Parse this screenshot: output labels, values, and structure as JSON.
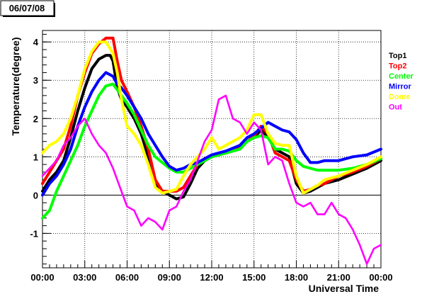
{
  "chart_data": {
    "type": "line",
    "date_label": "06/07/08",
    "xlabel": "Universal Time",
    "ylabel": "Temperature(degree)",
    "xlim": [
      0,
      24
    ],
    "ylim": [
      -1.9,
      4.3
    ],
    "x_ticks": [
      "00:00",
      "03:00",
      "06:00",
      "09:00",
      "12:00",
      "15:00",
      "18:00",
      "21:00",
      "00:00"
    ],
    "y_ticks": [
      "-1",
      "0",
      "1",
      "2",
      "3",
      "4"
    ],
    "grid": true,
    "zero_line": true,
    "legend_position": "right",
    "series": [
      {
        "name": "Top1",
        "color": "#000000",
        "points": [
          [
            0,
            0.1
          ],
          [
            0.5,
            0.4
          ],
          [
            1,
            0.6
          ],
          [
            1.5,
            0.9
          ],
          [
            2,
            1.5
          ],
          [
            2.5,
            2.2
          ],
          [
            3,
            2.8
          ],
          [
            3.5,
            3.3
          ],
          [
            4,
            3.55
          ],
          [
            4.5,
            3.65
          ],
          [
            4.8,
            3.65
          ],
          [
            5,
            3.5
          ],
          [
            5.3,
            2.8
          ],
          [
            5.6,
            2.5
          ],
          [
            6,
            2.3
          ],
          [
            6.5,
            2.0
          ],
          [
            7,
            1.6
          ],
          [
            7.5,
            1.0
          ],
          [
            8,
            0.3
          ],
          [
            8.5,
            0.1
          ],
          [
            9,
            0
          ],
          [
            9.5,
            -0.1
          ],
          [
            10,
            -0.05
          ],
          [
            10.5,
            0.3
          ],
          [
            11,
            0.7
          ],
          [
            11.5,
            0.9
          ],
          [
            12,
            1.0
          ],
          [
            13,
            1.1
          ],
          [
            14,
            1.2
          ],
          [
            14.5,
            1.4
          ],
          [
            15,
            1.5
          ],
          [
            15.5,
            1.7
          ],
          [
            16,
            1.5
          ],
          [
            16.5,
            1.2
          ],
          [
            17,
            1.1
          ],
          [
            17.5,
            1.0
          ],
          [
            18,
            0.3
          ],
          [
            18.5,
            0.05
          ],
          [
            19,
            0.1
          ],
          [
            19.5,
            0.2
          ],
          [
            20,
            0.3
          ],
          [
            21,
            0.4
          ],
          [
            22,
            0.55
          ],
          [
            23,
            0.7
          ],
          [
            24,
            0.9
          ]
        ]
      },
      {
        "name": "Top2",
        "color": "#ff0000",
        "points": [
          [
            0,
            0.3
          ],
          [
            0.5,
            0.6
          ],
          [
            1,
            0.9
          ],
          [
            1.5,
            1.2
          ],
          [
            2,
            1.8
          ],
          [
            2.5,
            2.6
          ],
          [
            3,
            3.2
          ],
          [
            3.5,
            3.7
          ],
          [
            4,
            3.95
          ],
          [
            4.5,
            4.1
          ],
          [
            5,
            4.1
          ],
          [
            5.3,
            3.5
          ],
          [
            5.6,
            3.0
          ],
          [
            6,
            2.7
          ],
          [
            6.5,
            2.3
          ],
          [
            7,
            1.8
          ],
          [
            7.5,
            1.2
          ],
          [
            8,
            0.4
          ],
          [
            8.5,
            0.1
          ],
          [
            9,
            0.1
          ],
          [
            9.5,
            0.1
          ],
          [
            10,
            0.2
          ],
          [
            10.5,
            0.5
          ],
          [
            11,
            0.8
          ],
          [
            11.5,
            0.95
          ],
          [
            12,
            1.05
          ],
          [
            13,
            1.1
          ],
          [
            14,
            1.25
          ],
          [
            14.5,
            1.4
          ],
          [
            15,
            1.55
          ],
          [
            15.5,
            1.8
          ],
          [
            16,
            1.6
          ],
          [
            16.5,
            1.1
          ],
          [
            17,
            1.0
          ],
          [
            17.5,
            0.9
          ],
          [
            18,
            0.4
          ],
          [
            18.5,
            0.1
          ],
          [
            19,
            0.15
          ],
          [
            19.5,
            0.25
          ],
          [
            20,
            0.3
          ],
          [
            21,
            0.5
          ],
          [
            22,
            0.6
          ],
          [
            23,
            0.75
          ],
          [
            24,
            0.95
          ]
        ]
      },
      {
        "name": "Center",
        "color": "#00ff00",
        "points": [
          [
            0,
            -0.6
          ],
          [
            0.5,
            -0.4
          ],
          [
            1,
            0.1
          ],
          [
            1.5,
            0.5
          ],
          [
            2,
            0.9
          ],
          [
            2.5,
            1.3
          ],
          [
            3,
            1.8
          ],
          [
            3.5,
            2.2
          ],
          [
            4,
            2.6
          ],
          [
            4.5,
            2.85
          ],
          [
            5,
            2.9
          ],
          [
            5.3,
            2.75
          ],
          [
            5.6,
            2.6
          ],
          [
            6,
            2.4
          ],
          [
            6.5,
            2.1
          ],
          [
            7,
            1.7
          ],
          [
            7.5,
            1.3
          ],
          [
            8,
            1.0
          ],
          [
            8.5,
            0.85
          ],
          [
            9,
            0.7
          ],
          [
            9.5,
            0.6
          ],
          [
            10,
            0.6
          ],
          [
            10.5,
            0.7
          ],
          [
            11,
            0.8
          ],
          [
            11.5,
            0.9
          ],
          [
            12,
            1.0
          ],
          [
            13,
            1.1
          ],
          [
            14,
            1.2
          ],
          [
            14.5,
            1.4
          ],
          [
            15,
            1.5
          ],
          [
            15.5,
            1.55
          ],
          [
            16,
            1.5
          ],
          [
            16.5,
            1.2
          ],
          [
            17,
            1.2
          ],
          [
            17.5,
            1.15
          ],
          [
            18,
            0.9
          ],
          [
            18.5,
            0.75
          ],
          [
            19,
            0.7
          ],
          [
            19.5,
            0.65
          ],
          [
            20,
            0.65
          ],
          [
            21,
            0.65
          ],
          [
            22,
            0.7
          ],
          [
            23,
            0.8
          ],
          [
            24,
            0.95
          ]
        ]
      },
      {
        "name": "Mirror",
        "color": "#0000ff",
        "points": [
          [
            0,
            0
          ],
          [
            0.5,
            0.3
          ],
          [
            1,
            0.5
          ],
          [
            1.5,
            0.8
          ],
          [
            2,
            1.2
          ],
          [
            2.5,
            1.8
          ],
          [
            3,
            2.3
          ],
          [
            3.5,
            2.7
          ],
          [
            4,
            3.0
          ],
          [
            4.5,
            3.2
          ],
          [
            5,
            3.1
          ],
          [
            5.3,
            2.9
          ],
          [
            5.6,
            2.8
          ],
          [
            6,
            2.6
          ],
          [
            6.5,
            2.3
          ],
          [
            7,
            2.0
          ],
          [
            7.5,
            1.6
          ],
          [
            8,
            1.3
          ],
          [
            8.5,
            1.0
          ],
          [
            9,
            0.75
          ],
          [
            9.5,
            0.65
          ],
          [
            10,
            0.7
          ],
          [
            10.5,
            0.8
          ],
          [
            11,
            0.85
          ],
          [
            11.5,
            0.95
          ],
          [
            12,
            1.05
          ],
          [
            13,
            1.15
          ],
          [
            14,
            1.3
          ],
          [
            14.5,
            1.5
          ],
          [
            15,
            1.6
          ],
          [
            15.5,
            1.75
          ],
          [
            16,
            1.9
          ],
          [
            16.5,
            1.8
          ],
          [
            17,
            1.7
          ],
          [
            17.5,
            1.65
          ],
          [
            18,
            1.45
          ],
          [
            18.5,
            1.1
          ],
          [
            19,
            0.85
          ],
          [
            19.5,
            0.85
          ],
          [
            20,
            0.9
          ],
          [
            21,
            0.9
          ],
          [
            22,
            1.0
          ],
          [
            23,
            1.05
          ],
          [
            24,
            1.2
          ]
        ]
      },
      {
        "name": "Dome",
        "color": "#ffff00",
        "points": [
          [
            0,
            1.1
          ],
          [
            0.5,
            1.3
          ],
          [
            1,
            1.4
          ],
          [
            1.5,
            1.6
          ],
          [
            2,
            2.0
          ],
          [
            2.5,
            2.6
          ],
          [
            3,
            3.3
          ],
          [
            3.5,
            3.75
          ],
          [
            4,
            4.0
          ],
          [
            4.5,
            4.0
          ],
          [
            5,
            3.7
          ],
          [
            5.3,
            3.2
          ],
          [
            5.6,
            2.5
          ],
          [
            6,
            1.8
          ],
          [
            6.5,
            1.6
          ],
          [
            7,
            1.3
          ],
          [
            7.5,
            0.8
          ],
          [
            8,
            0.2
          ],
          [
            8.5,
            0.05
          ],
          [
            9,
            0.1
          ],
          [
            9.5,
            0.15
          ],
          [
            10,
            0.5
          ],
          [
            10.5,
            0.8
          ],
          [
            11,
            1.0
          ],
          [
            11.5,
            1.2
          ],
          [
            12,
            1.5
          ],
          [
            12.5,
            1.2
          ],
          [
            13,
            1.3
          ],
          [
            14,
            1.5
          ],
          [
            14.5,
            1.7
          ],
          [
            15,
            2.1
          ],
          [
            15.5,
            2.1
          ],
          [
            16,
            1.6
          ],
          [
            16.5,
            1.35
          ],
          [
            17,
            1.3
          ],
          [
            17.5,
            1.3
          ],
          [
            18,
            0.5
          ],
          [
            18.5,
            0.05
          ],
          [
            19,
            0.15
          ],
          [
            19.5,
            0.25
          ],
          [
            20,
            0.4
          ],
          [
            21,
            0.5
          ],
          [
            22,
            0.65
          ],
          [
            23,
            0.8
          ],
          [
            24,
            1.0
          ]
        ]
      },
      {
        "name": "Out",
        "color": "#ff00ff",
        "points": [
          [
            0,
            0.5
          ],
          [
            0.5,
            0.7
          ],
          [
            1,
            0.9
          ],
          [
            1.5,
            1.3
          ],
          [
            2,
            1.5
          ],
          [
            2.5,
            1.8
          ],
          [
            3,
            2.0
          ],
          [
            3.5,
            1.6
          ],
          [
            4,
            1.3
          ],
          [
            4.5,
            1.1
          ],
          [
            5,
            0.7
          ],
          [
            5.5,
            0.2
          ],
          [
            6,
            -0.3
          ],
          [
            6.5,
            -0.4
          ],
          [
            7,
            -0.8
          ],
          [
            7.5,
            -0.6
          ],
          [
            8,
            -0.7
          ],
          [
            8.5,
            -0.9
          ],
          [
            9,
            -0.4
          ],
          [
            9.5,
            -0.3
          ],
          [
            10,
            0.1
          ],
          [
            10.5,
            0.4
          ],
          [
            11,
            0.9
          ],
          [
            11.5,
            1.4
          ],
          [
            12,
            1.7
          ],
          [
            12.5,
            2.5
          ],
          [
            13,
            2.6
          ],
          [
            13.5,
            2.0
          ],
          [
            14,
            1.9
          ],
          [
            14.5,
            1.6
          ],
          [
            15,
            1.9
          ],
          [
            15.5,
            1.7
          ],
          [
            16,
            0.8
          ],
          [
            16.5,
            1.0
          ],
          [
            17,
            0.9
          ],
          [
            17.5,
            0.3
          ],
          [
            18,
            -0.2
          ],
          [
            18.5,
            -0.3
          ],
          [
            19,
            -0.2
          ],
          [
            19.5,
            -0.5
          ],
          [
            20,
            -0.5
          ],
          [
            20.5,
            -0.2
          ],
          [
            21,
            -0.5
          ],
          [
            21.5,
            -0.6
          ],
          [
            22,
            -0.9
          ],
          [
            22.5,
            -1.3
          ],
          [
            23,
            -1.8
          ],
          [
            23.5,
            -1.4
          ],
          [
            24,
            -1.3
          ]
        ]
      }
    ]
  }
}
